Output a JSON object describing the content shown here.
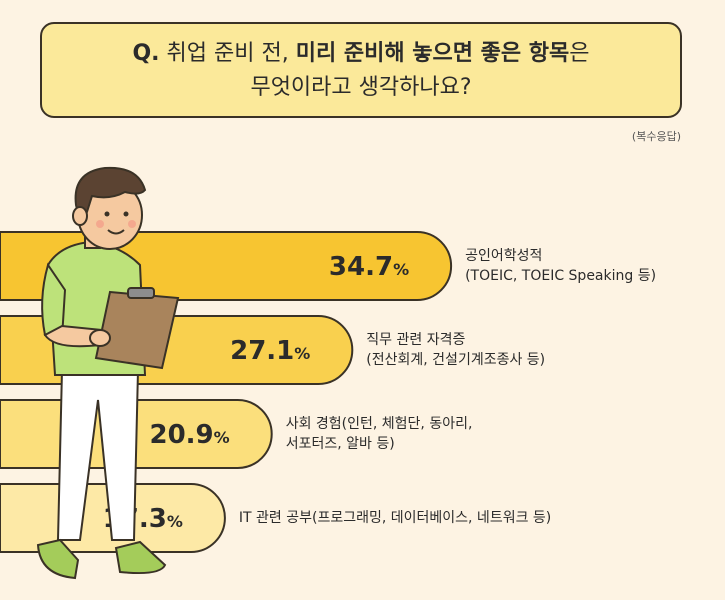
{
  "question": {
    "prefix": "Q.",
    "line1_normal_a": "취업 준비 전, ",
    "line1_bold": "미리 준비해 놓으면 좋은 항목",
    "line1_normal_b": "은",
    "line2": "무엇이라고 생각하나요?"
  },
  "note": "(복수응답)",
  "colors": {
    "background": "#fdf3e3",
    "bar_1": "#f7c531",
    "bar_2": "#f9d04e",
    "bar_3": "#fbdf7c",
    "bar_4": "#fde9a6",
    "outline": "#3a3226"
  },
  "chart_data": {
    "type": "bar",
    "orientation": "horizontal",
    "unit": "%",
    "categories": [
      [
        "공인어학성적",
        "(TOEIC, TOEIC Speaking 등)"
      ],
      [
        "직무 관련 자격증",
        "(전산회계, 건설기계조종사 등)"
      ],
      [
        "사회 경험(인턴, 체험단, 동아리,",
        "서포터즈, 알바 등)"
      ],
      [
        "IT 관련 공부(프로그래밍, 데이터베이스, 네트워크 등)"
      ]
    ],
    "values": [
      34.7,
      27.1,
      20.9,
      17.3
    ],
    "value_labels": [
      "34.7",
      "27.1",
      "20.9",
      "17.3"
    ]
  }
}
